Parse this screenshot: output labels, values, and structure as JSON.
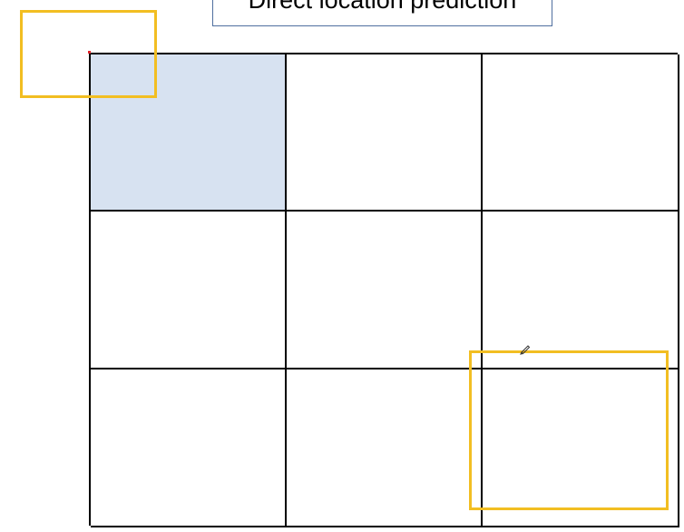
{
  "title": "Direct location prediction",
  "grid": {
    "rows": 3,
    "columns": 3,
    "highlighted_cell": [
      0,
      0
    ],
    "highlight_color": "#d7e2f1",
    "line_color": "#000000"
  },
  "boxes": {
    "color": "#f2be22",
    "items": [
      "top-left",
      "bottom-right"
    ]
  },
  "icons": [
    "pen-icon"
  ]
}
